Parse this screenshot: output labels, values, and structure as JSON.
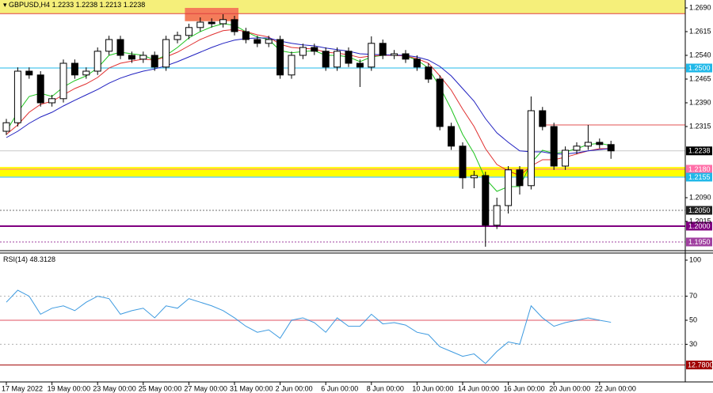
{
  "header": {
    "symbol": "GBPUSD,H4",
    "open": 1.2233,
    "high": 1.2238,
    "low": 1.2213,
    "close": 1.2238
  },
  "chart_data": [
    {
      "type": "candlestick",
      "categories": [
        "17 May 2022",
        null,
        null,
        null,
        "19 May 00:00",
        null,
        null,
        null,
        "23 May 00:00",
        null,
        null,
        null,
        "25 May 00:00",
        null,
        null,
        null,
        "27 May 00:00",
        null,
        null,
        null,
        "31 May 00:00",
        null,
        null,
        null,
        "2 Jun 00:00",
        null,
        null,
        null,
        "6 Jun 00:00",
        null,
        null,
        null,
        "8 Jun 00:00",
        null,
        null,
        null,
        "10 Jun 00:00",
        null,
        null,
        null,
        "14 Jun 00:00",
        null,
        null,
        null,
        "16 Jun 00:00",
        null,
        null,
        null,
        "20 Jun 00:00",
        null,
        null,
        null,
        "22 Jun 00:00",
        null
      ],
      "open": [
        1.23,
        1.2327,
        1.249,
        1.2478,
        1.239,
        1.2403,
        1.2515,
        1.2478,
        1.249,
        1.2553,
        1.259,
        1.254,
        1.2528,
        1.254,
        1.2503,
        1.259,
        1.2603,
        1.2628,
        1.2645,
        1.264,
        1.2653,
        1.2615,
        1.259,
        1.2578,
        1.259,
        1.2478,
        1.254,
        1.2565,
        1.2553,
        1.2503,
        1.2553,
        1.2515,
        1.2503,
        1.2578,
        1.254,
        1.2545,
        1.2528,
        1.2503,
        1.2465,
        1.2315,
        1.2253,
        1.2153,
        1.216,
        1.2003,
        1.2065,
        1.2178,
        1.2128,
        1.2365,
        1.2315,
        1.219,
        1.224,
        1.2253,
        1.2265,
        1.2258
      ],
      "high": [
        1.2339,
        1.2502,
        1.2502,
        1.249,
        1.2415,
        1.2527,
        1.2527,
        1.2502,
        1.2565,
        1.2602,
        1.2602,
        1.2552,
        1.2552,
        1.2552,
        1.2602,
        1.2615,
        1.264,
        1.266,
        1.2657,
        1.267,
        1.2665,
        1.2627,
        1.2602,
        1.2602,
        1.2602,
        1.2552,
        1.2577,
        1.2577,
        1.2565,
        1.2565,
        1.2565,
        1.2527,
        1.26,
        1.259,
        1.2557,
        1.2557,
        1.254,
        1.2515,
        1.2477,
        1.2327,
        1.2265,
        1.2175,
        1.2172,
        1.209,
        1.219,
        1.219,
        1.241,
        1.2377,
        1.2327,
        1.2252,
        1.2265,
        1.232,
        1.2277,
        1.227
      ],
      "low": [
        1.2288,
        1.2315,
        1.2466,
        1.2378,
        1.2378,
        1.2391,
        1.2466,
        1.2466,
        1.2478,
        1.2541,
        1.2528,
        1.2516,
        1.2516,
        1.2491,
        1.2491,
        1.2578,
        1.2591,
        1.2616,
        1.2628,
        1.2628,
        1.2603,
        1.2578,
        1.2566,
        1.2566,
        1.2466,
        1.2466,
        1.2528,
        1.2541,
        1.2491,
        1.2491,
        1.2503,
        1.244,
        1.2491,
        1.2528,
        1.2528,
        1.2516,
        1.2491,
        1.2453,
        1.2303,
        1.2241,
        1.2118,
        1.212,
        1.1935,
        1.1991,
        1.204,
        1.21,
        1.2116,
        1.2303,
        1.2178,
        1.2178,
        1.2228,
        1.2241,
        1.2246,
        1.2213
      ],
      "close": [
        1.2327,
        1.249,
        1.2478,
        1.239,
        1.2403,
        1.2515,
        1.2478,
        1.249,
        1.2553,
        1.259,
        1.254,
        1.2528,
        1.254,
        1.2503,
        1.259,
        1.2603,
        1.2628,
        1.2645,
        1.264,
        1.2653,
        1.2615,
        1.259,
        1.2578,
        1.259,
        1.2478,
        1.254,
        1.2565,
        1.2553,
        1.2503,
        1.2553,
        1.2515,
        1.2503,
        1.2578,
        1.254,
        1.2545,
        1.2528,
        1.2503,
        1.2465,
        1.2315,
        1.2253,
        1.2153,
        1.216,
        1.2003,
        1.2065,
        1.2178,
        1.2128,
        1.2365,
        1.2315,
        1.219,
        1.224,
        1.2253,
        1.2265,
        1.2258,
        1.2238
      ],
      "series": [
        {
          "color": "#1fc41f",
          "values": [
            1.23,
            1.236,
            1.241,
            1.242,
            1.241,
            1.244,
            1.246,
            1.2475,
            1.25,
            1.254,
            1.255,
            1.2545,
            1.254,
            1.2525,
            1.254,
            1.2565,
            1.2595,
            1.2615,
            1.263,
            1.264,
            1.2635,
            1.2615,
            1.2598,
            1.259,
            1.2555,
            1.2548,
            1.2552,
            1.2555,
            1.254,
            1.254,
            1.2535,
            1.252,
            1.2535,
            1.254,
            1.254,
            1.2538,
            1.2525,
            1.25,
            1.244,
            1.237,
            1.229,
            1.223,
            1.215,
            1.211,
            1.2125,
            1.2125,
            1.22,
            1.224,
            1.223,
            1.2235,
            1.2245,
            1.2258,
            1.2262,
            1.2255
          ]
        },
        {
          "color": "#e03030",
          "values": [
            1.229,
            1.232,
            1.236,
            1.2385,
            1.2395,
            1.2415,
            1.2435,
            1.245,
            1.247,
            1.25,
            1.2515,
            1.2522,
            1.2528,
            1.2525,
            1.2535,
            1.255,
            1.257,
            1.259,
            1.2605,
            1.2618,
            1.2622,
            1.2615,
            1.2605,
            1.2598,
            1.2575,
            1.2565,
            1.2562,
            1.256,
            1.255,
            1.2547,
            1.2542,
            1.2533,
            1.2538,
            1.254,
            1.254,
            1.2538,
            1.253,
            1.2515,
            1.2475,
            1.243,
            1.237,
            1.2315,
            1.2245,
            1.2195,
            1.2175,
            1.216,
            1.219,
            1.221,
            1.221,
            1.2218,
            1.2228,
            1.2238,
            1.2245,
            1.2245
          ]
        },
        {
          "color": "#2020c0",
          "values": [
            1.228,
            1.23,
            1.2325,
            1.2345,
            1.236,
            1.238,
            1.2398,
            1.2415,
            1.2432,
            1.2452,
            1.2468,
            1.248,
            1.249,
            1.2497,
            1.2507,
            1.252,
            1.2535,
            1.255,
            1.2565,
            1.2578,
            1.2588,
            1.2593,
            1.2595,
            1.2595,
            1.2585,
            1.2578,
            1.2573,
            1.257,
            1.2563,
            1.2558,
            1.2553,
            1.2545,
            1.2543,
            1.2542,
            1.2541,
            1.254,
            1.2535,
            1.2525,
            1.2505,
            1.2475,
            1.2435,
            1.2395,
            1.234,
            1.2295,
            1.2265,
            1.2238,
            1.2235,
            1.2235,
            1.2228,
            1.2228,
            1.2232,
            1.2238,
            1.2242,
            1.2245
          ]
        }
      ],
      "ylim": [
        1.1925,
        1.2715
      ],
      "yticks": [
        {
          "value": 1.269,
          "label": "1.2690"
        },
        1.2615,
        {
          "value": 1.254,
          "label": "1.2540"
        },
        1.2465,
        {
          "value": 1.239,
          "label": "1.2390"
        },
        1.2315,
        {
          "value": 1.209,
          "label": "1.2090"
        },
        1.2015
      ],
      "zones": [
        {
          "from": 1.2672,
          "to": 1.2715,
          "color": "#f5ef7a"
        },
        {
          "from": 1.2648,
          "to": 1.269,
          "color": "#f47c5a"
        },
        {
          "from": 1.2157,
          "to": 1.2187,
          "color": "#ffff00"
        }
      ],
      "levels": [
        {
          "value": 1.2672,
          "color": "#e04040",
          "style": "solid"
        },
        {
          "value": 1.25,
          "label": "1.2500",
          "color": "#20b8e8",
          "style": "solid"
        },
        {
          "value": 1.232,
          "color": "#e05050",
          "style": "solid"
        },
        {
          "value": 1.2238,
          "label": "1.2238",
          "color": "#c8c8c8",
          "label_color": "#000000",
          "style": "solid"
        },
        {
          "value": 1.218,
          "label": "1.2180",
          "color": "#ff6fa8",
          "style": "solid"
        },
        {
          "value": 1.2155,
          "label": "1.2155",
          "color": "#20b8e8",
          "style": "solid"
        },
        {
          "value": 1.205,
          "label": "1.2050",
          "color": "#707070",
          "label_color": "#202020",
          "style": "dotted"
        },
        {
          "value": 1.2,
          "label": "1.2000",
          "color": "#800080",
          "style": "solid"
        },
        {
          "value": 1.195,
          "label": "1.1950",
          "color": "#a040a0",
          "style": "dotted"
        }
      ]
    },
    {
      "type": "line",
      "name": "RSI(14)",
      "color": "#3d9ae0",
      "values": [
        65,
        75,
        70,
        55,
        60,
        62,
        58,
        65,
        70,
        68,
        55,
        58,
        60,
        52,
        62,
        60,
        68,
        65,
        62,
        58,
        52,
        45,
        40,
        42,
        35,
        50,
        52,
        48,
        40,
        52,
        45,
        45,
        55,
        47,
        48,
        46,
        40,
        38,
        28,
        24,
        20,
        22,
        14,
        24,
        32,
        30,
        62,
        52,
        45,
        48,
        50,
        52,
        50,
        48.3128
      ],
      "ylim": [
        0,
        100
      ],
      "yticks": [
        100,
        70,
        50,
        30
      ],
      "levels": [
        {
          "value": 70,
          "color": "#b0b0b0",
          "style": "dotted"
        },
        {
          "value": 50,
          "color": "#f0a8b0",
          "style": "solid"
        },
        {
          "value": 30,
          "color": "#b0b0b0",
          "style": "dotted"
        },
        {
          "value": 12.78,
          "label": "12.7800",
          "color": "#a00000",
          "style": "solid"
        }
      ]
    }
  ]
}
